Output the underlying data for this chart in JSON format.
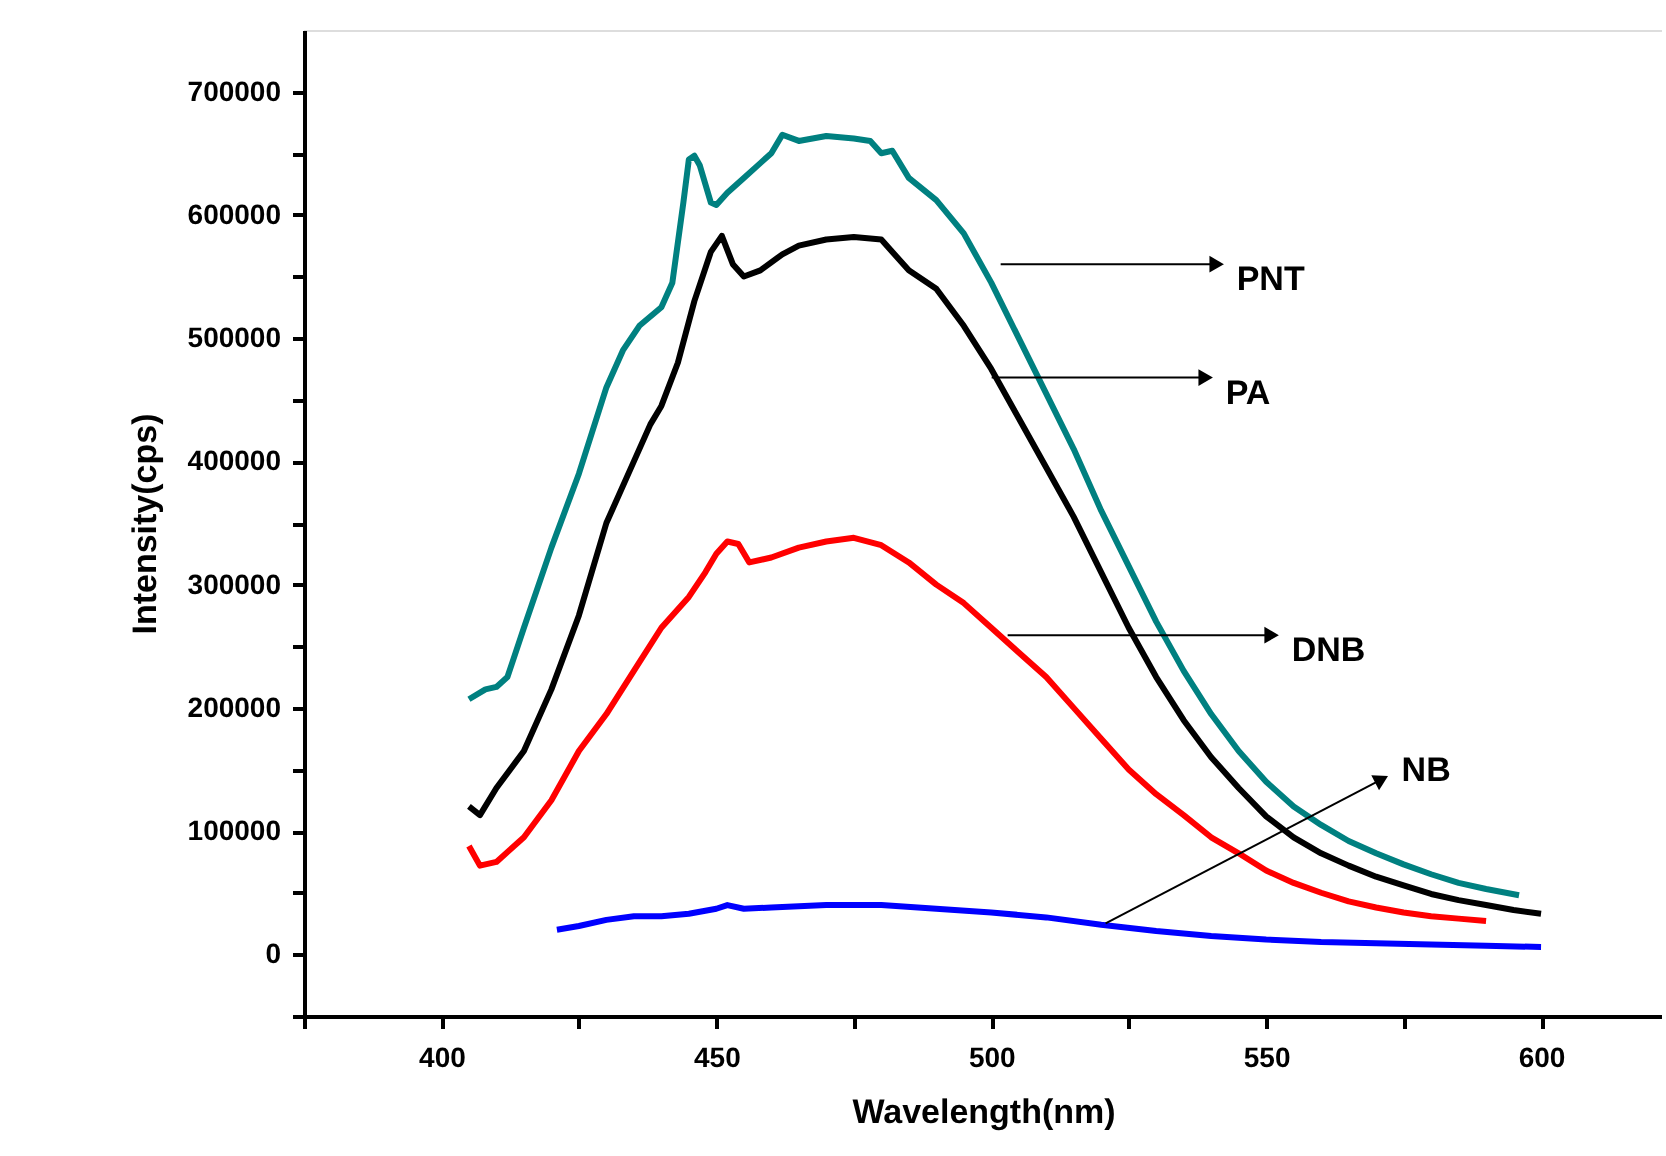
{
  "chart_data": {
    "type": "line",
    "xlabel": "Wavelength(nm)",
    "ylabel": "Intensity(cps)",
    "xlim": [
      375,
      622
    ],
    "ylim": [
      -50000,
      750000
    ],
    "xticks": [
      {
        "value": 375,
        "label": null
      },
      400,
      {
        "value": 425,
        "label": null
      },
      450,
      {
        "value": 475,
        "label": null
      },
      500,
      {
        "value": 525,
        "label": null
      },
      550,
      {
        "value": 575,
        "label": null
      },
      600
    ],
    "yticks": [
      {
        "value": -50000,
        "label": null
      },
      0,
      {
        "value": 50000,
        "label": null
      },
      100000,
      {
        "value": 150000,
        "label": null
      },
      200000,
      {
        "value": 250000,
        "label": null
      },
      300000,
      {
        "value": 350000,
        "label": null
      },
      400000,
      {
        "value": 450000,
        "label": null
      },
      500000,
      {
        "value": 550000,
        "label": null
      },
      600000,
      {
        "value": 650000,
        "label": null
      },
      700000
    ],
    "grid": false,
    "marker": "none",
    "line_style": "solid",
    "series": [
      {
        "color": "#008080",
        "x": [
          405,
          408,
          410,
          412,
          415,
          420,
          425,
          430,
          433,
          436,
          440,
          442,
          444,
          445,
          446,
          447,
          449,
          450,
          452,
          455,
          458,
          460,
          462,
          465,
          470,
          475,
          478,
          480,
          482,
          485,
          490,
          495,
          500,
          505,
          510,
          515,
          520,
          525,
          530,
          535,
          540,
          545,
          550,
          555,
          560,
          565,
          570,
          575,
          580,
          585,
          590,
          596
        ],
        "values": [
          207000,
          215000,
          217000,
          225000,
          265000,
          330000,
          390000,
          460000,
          490000,
          510000,
          525000,
          545000,
          610000,
          645000,
          648000,
          640000,
          610000,
          608000,
          618000,
          630000,
          642000,
          650000,
          665000,
          660000,
          664000,
          662000,
          660000,
          650000,
          652000,
          630000,
          612000,
          585000,
          545000,
          500000,
          455000,
          410000,
          360000,
          315000,
          270000,
          230000,
          195000,
          165000,
          140000,
          120000,
          105000,
          92000,
          82000,
          73000,
          65000,
          58000,
          53000,
          48000
        ]
      },
      {
        "color": "#000000",
        "x": [
          405,
          407,
          410,
          415,
          420,
          425,
          430,
          435,
          438,
          440,
          443,
          446,
          449,
          451,
          453,
          455,
          458,
          462,
          465,
          470,
          475,
          480,
          485,
          490,
          495,
          500,
          505,
          510,
          515,
          520,
          525,
          530,
          535,
          540,
          545,
          550,
          555,
          560,
          565,
          570,
          575,
          580,
          585,
          590,
          595,
          600
        ],
        "values": [
          120000,
          113000,
          135000,
          165000,
          215000,
          275000,
          350000,
          400000,
          430000,
          445000,
          480000,
          530000,
          570000,
          583000,
          560000,
          550000,
          555000,
          568000,
          575000,
          580000,
          582000,
          580000,
          555000,
          540000,
          510000,
          475000,
          435000,
          395000,
          355000,
          310000,
          265000,
          225000,
          190000,
          160000,
          135000,
          112000,
          95000,
          82000,
          72000,
          63000,
          56000,
          49000,
          44000,
          40000,
          36000,
          33000
        ]
      },
      {
        "color": "#ff0000",
        "x": [
          405,
          407,
          410,
          415,
          420,
          425,
          430,
          435,
          440,
          445,
          448,
          450,
          452,
          454,
          456,
          460,
          465,
          470,
          475,
          480,
          485,
          490,
          495,
          500,
          505,
          510,
          515,
          520,
          525,
          530,
          535,
          540,
          545,
          550,
          555,
          560,
          565,
          570,
          575,
          580,
          585,
          590
        ],
        "values": [
          88000,
          72000,
          75000,
          95000,
          125000,
          165000,
          195000,
          230000,
          265000,
          290000,
          310000,
          325000,
          335000,
          333000,
          318000,
          322000,
          330000,
          335000,
          338000,
          332000,
          318000,
          300000,
          285000,
          265000,
          245000,
          225000,
          200000,
          175000,
          150000,
          130000,
          113000,
          95000,
          82000,
          68000,
          58000,
          50000,
          43000,
          38000,
          34000,
          31000,
          29000,
          27000
        ]
      },
      {
        "color": "#0000ff",
        "x": [
          421,
          425,
          430,
          435,
          440,
          445,
          450,
          452,
          455,
          460,
          470,
          480,
          490,
          500,
          510,
          520,
          530,
          540,
          550,
          560,
          570,
          580,
          590,
          600
        ],
        "values": [
          20000,
          23000,
          28000,
          31000,
          31000,
          33000,
          37000,
          40000,
          37000,
          38000,
          40000,
          40000,
          37000,
          34000,
          30000,
          24000,
          19000,
          15000,
          12000,
          10000,
          9000,
          8000,
          7000,
          6000
        ]
      }
    ],
    "annotations": [
      {
        "text": "PNT",
        "x": 541,
        "y": 560000
      },
      {
        "text": "PA",
        "x": 539,
        "y": 468000
      },
      {
        "text": "DNB",
        "x": 551,
        "y": 259000
      },
      {
        "text": "NB",
        "x": 571,
        "y": 142000
      }
    ]
  }
}
